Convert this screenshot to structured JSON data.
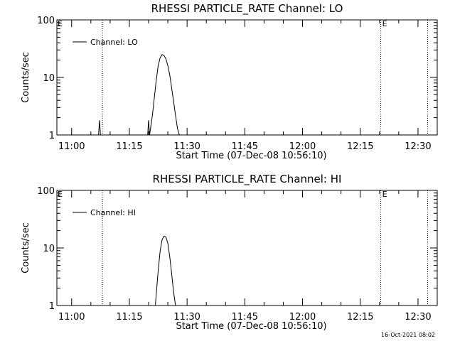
{
  "footer": {
    "timestamp": "16-Oct-2021 08:02"
  },
  "chart_data": [
    {
      "type": "line",
      "title": "RHESSI PARTICLE_RATE Channel: LO",
      "xlabel": "Start Time (07-Dec-08 10:56:10)",
      "ylabel": "Counts/sec",
      "yscale": "log",
      "xlim": [
        "10:56:10",
        "12:35:00"
      ],
      "ylim": [
        1,
        100
      ],
      "x_tick_labels": [
        "11:00",
        "11:15",
        "11:30",
        "11:45",
        "12:00",
        "12:15",
        "12:30"
      ],
      "y_tick_labels": [
        "1",
        "10",
        "100"
      ],
      "legend_position": "top-left",
      "series": [
        {
          "name": "Channel: LO",
          "points": [
            [
              "11:07:00",
              1.0
            ],
            [
              "11:07:15",
              1.8
            ],
            [
              "11:07:30",
              1.0
            ],
            [
              "11:19:45",
              1.0
            ],
            [
              "11:20:00",
              1.8
            ],
            [
              "11:20:15",
              1.0
            ],
            [
              "11:21:00",
              2.2
            ],
            [
              "11:21:30",
              4.5
            ],
            [
              "11:22:00",
              9.0
            ],
            [
              "11:22:30",
              16.0
            ],
            [
              "11:23:00",
              22.0
            ],
            [
              "11:23:30",
              25.0
            ],
            [
              "11:24:00",
              24.0
            ],
            [
              "11:24:30",
              21.0
            ],
            [
              "11:25:00",
              16.0
            ],
            [
              "11:25:30",
              11.0
            ],
            [
              "11:26:00",
              6.5
            ],
            [
              "11:26:30",
              3.8
            ],
            [
              "11:27:00",
              2.2
            ],
            [
              "11:27:30",
              1.3
            ],
            [
              "11:28:00",
              1.0
            ]
          ]
        }
      ],
      "vertical_markers": [
        {
          "time": "11:08:00",
          "label": ""
        },
        {
          "time": "12:20:20",
          "label": "E"
        },
        {
          "time": "12:32:30",
          "label": ""
        }
      ],
      "left_marker_label": "E"
    },
    {
      "type": "line",
      "title": "RHESSI PARTICLE_RATE Channel: HI",
      "xlabel": "Start Time (07-Dec-08 10:56:10)",
      "ylabel": "Counts/sec",
      "yscale": "log",
      "xlim": [
        "10:56:10",
        "12:35:00"
      ],
      "ylim": [
        1,
        100
      ],
      "x_tick_labels": [
        "11:00",
        "11:15",
        "11:30",
        "11:45",
        "12:00",
        "12:15",
        "12:30"
      ],
      "y_tick_labels": [
        "1",
        "10",
        "100"
      ],
      "legend_position": "top-left",
      "series": [
        {
          "name": "Channel: HI",
          "points": [
            [
              "11:21:45",
              1.0
            ],
            [
              "11:22:00",
              1.6
            ],
            [
              "11:22:30",
              4.0
            ],
            [
              "11:23:00",
              9.0
            ],
            [
              "11:23:30",
              14.0
            ],
            [
              "11:24:00",
              16.0
            ],
            [
              "11:24:30",
              15.5
            ],
            [
              "11:25:00",
              12.0
            ],
            [
              "11:25:30",
              7.0
            ],
            [
              "11:26:00",
              3.5
            ],
            [
              "11:26:30",
              1.7
            ],
            [
              "11:27:00",
              1.0
            ]
          ]
        }
      ],
      "vertical_markers": [
        {
          "time": "11:08:00",
          "label": ""
        },
        {
          "time": "12:20:20",
          "label": "E"
        },
        {
          "time": "12:32:30",
          "label": ""
        }
      ],
      "left_marker_label": "E"
    }
  ]
}
